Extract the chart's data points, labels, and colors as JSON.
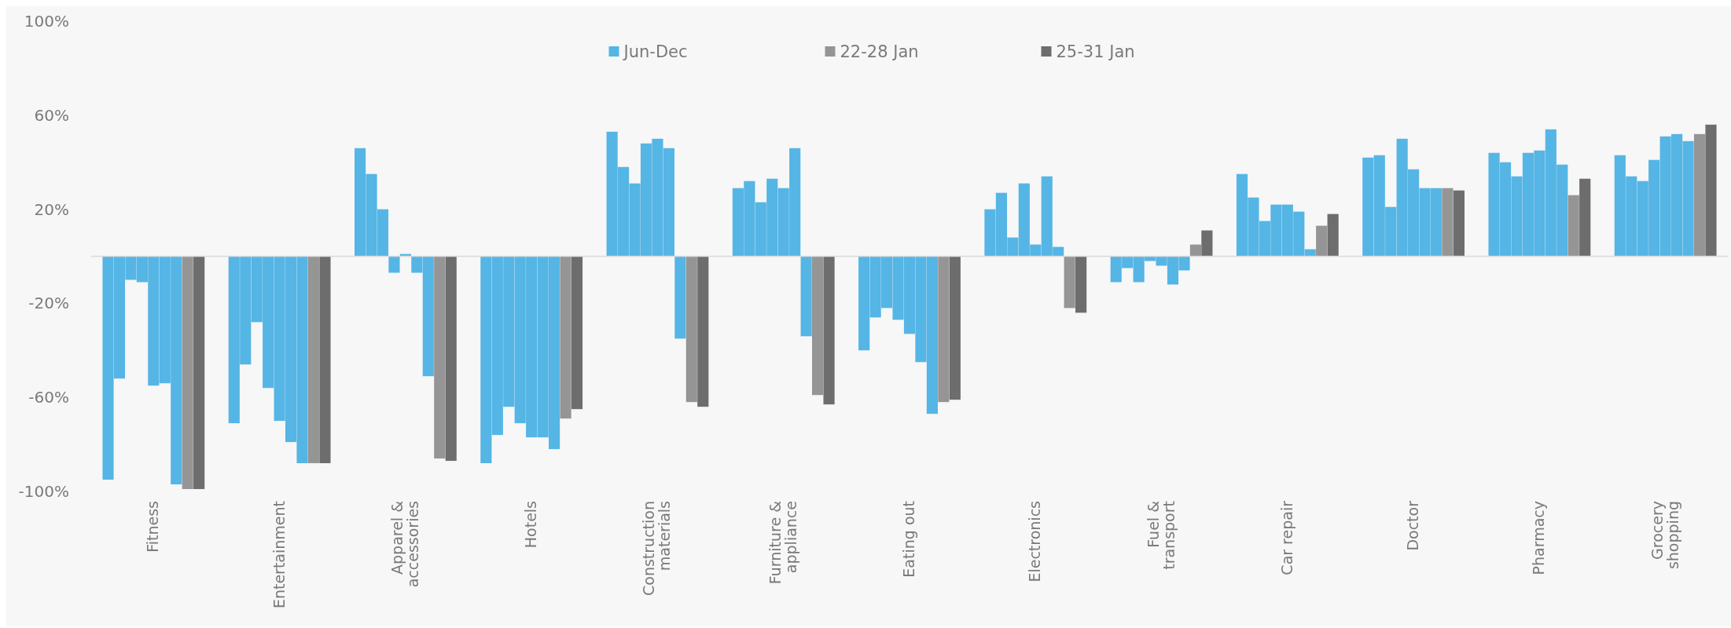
{
  "chart_data": {
    "type": "bar",
    "categories": [
      "Fitness",
      "Entertainment",
      "Apparel &\naccessories",
      "Hotels",
      "Construction\nmaterials",
      "Furniture &\nappliance",
      "Eating out",
      "Electronics",
      "Fuel &\ntransport",
      "Car repair",
      "Doctor",
      "Pharmacy",
      "Grocery\nshopping"
    ],
    "series": [
      {
        "name": "Jun-Dec",
        "color": "#55b5e5",
        "values": [
          -95,
          -71,
          46,
          -88,
          53,
          29,
          -40,
          20,
          -11,
          35,
          42,
          44,
          43
        ]
      },
      {
        "color": "#55b5e5",
        "values": [
          -52,
          -46,
          35,
          -76,
          38,
          32,
          -26,
          27,
          -5,
          25,
          43,
          40,
          34
        ]
      },
      {
        "color": "#55b5e5",
        "values": [
          -10,
          -28,
          20,
          -64,
          31,
          23,
          -22,
          8,
          -11,
          15,
          21,
          34,
          32
        ]
      },
      {
        "color": "#55b5e5",
        "values": [
          -11,
          -56,
          -7,
          -71,
          48,
          33,
          -27,
          31,
          -2,
          22,
          50,
          44,
          41
        ]
      },
      {
        "color": "#55b5e5",
        "values": [
          -55,
          -70,
          1,
          -77,
          50,
          29,
          -33,
          5,
          -4,
          22,
          37,
          45,
          51
        ]
      },
      {
        "color": "#55b5e5",
        "values": [
          -54,
          -79,
          -7,
          -77,
          46,
          46,
          -45,
          34,
          -12,
          19,
          29,
          54,
          52
        ]
      },
      {
        "color": "#55b5e5",
        "values": [
          -97,
          -88,
          -51,
          -82,
          -35,
          -34,
          -67,
          4,
          -6,
          3,
          29,
          39,
          49
        ]
      },
      {
        "name": "22-28 Jan",
        "color": "#959595",
        "values": [
          -99,
          -88,
          -86,
          -69,
          -62,
          -59,
          -62,
          -22,
          5,
          13,
          29,
          26,
          52
        ]
      },
      {
        "name": "25-31 Jan",
        "color": "#6d6d6d",
        "values": [
          -99,
          -88,
          -87,
          -65,
          -64,
          -63,
          -61,
          -24,
          11,
          18,
          28,
          33,
          56
        ]
      }
    ],
    "ylim": [
      -100,
      100
    ],
    "yticks": [
      {
        "value": -100,
        "label": "-100%"
      },
      {
        "value": -60,
        "label": "-60%"
      },
      {
        "value": -20,
        "label": "-20%"
      },
      {
        "value": 20,
        "label": "20%"
      },
      {
        "value": 60,
        "label": "60%"
      },
      {
        "value": 100,
        "label": "100%"
      }
    ],
    "grid": false,
    "legend": "top"
  }
}
